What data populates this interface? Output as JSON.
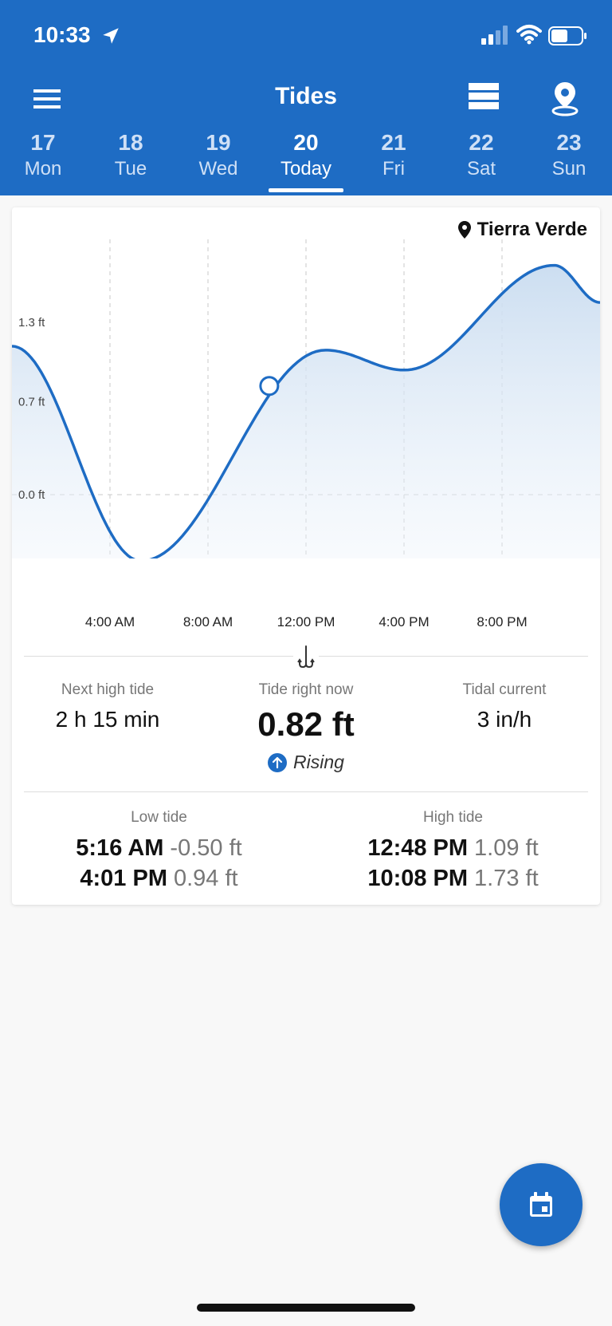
{
  "status_bar": {
    "time": "10:33"
  },
  "header": {
    "title": "Tides",
    "days": [
      {
        "num": "17",
        "name": "Mon",
        "active": false
      },
      {
        "num": "18",
        "name": "Tue",
        "active": false
      },
      {
        "num": "19",
        "name": "Wed",
        "active": false
      },
      {
        "num": "20",
        "name": "Today",
        "active": true
      },
      {
        "num": "21",
        "name": "Fri",
        "active": false
      },
      {
        "num": "22",
        "name": "Sat",
        "active": false
      },
      {
        "num": "23",
        "name": "Sun",
        "active": false
      }
    ]
  },
  "card": {
    "location": "Tierra Verde",
    "summary": {
      "next_high_label": "Next high tide",
      "next_high_value": "2 h 15 min",
      "now_label": "Tide right now",
      "now_value": "0.82 ft",
      "trend": "Rising",
      "current_label": "Tidal current",
      "current_value": "3 in/h"
    },
    "low_tide": {
      "label": "Low tide",
      "rows": [
        {
          "time": "5:16 AM",
          "height": "-0.50 ft"
        },
        {
          "time": "4:01 PM",
          "height": "0.94 ft"
        }
      ]
    },
    "high_tide": {
      "label": "High tide",
      "rows": [
        {
          "time": "12:48 PM",
          "height": "1.09 ft"
        },
        {
          "time": "10:08 PM",
          "height": "1.73 ft"
        }
      ]
    }
  },
  "chart_data": {
    "type": "area",
    "x_unit": "hours",
    "xlim": [
      0,
      24
    ],
    "ylim": [
      -0.75,
      2.0
    ],
    "y_ticks": [
      1.3,
      0.7,
      0.0
    ],
    "y_tick_labels": [
      "1.3 ft",
      "0.7 ft",
      "0.0 ft"
    ],
    "x_ticks": [
      4,
      8,
      12,
      16,
      20
    ],
    "x_tick_labels": [
      "4:00 AM",
      "8:00 AM",
      "12:00 PM",
      "4:00 PM",
      "8:00 PM"
    ],
    "grid": true,
    "series": [
      {
        "x": [
          0,
          5.27,
          12.8,
          16.02,
          22.13,
          24
        ],
        "y": [
          1.12,
          -0.5,
          1.09,
          0.94,
          1.73,
          1.45
        ]
      }
    ],
    "current_point": {
      "x": 10.5,
      "y": 0.82
    },
    "colors": {
      "line": "#1e6cc4",
      "fill": "#c9dcf0"
    }
  },
  "colors": {
    "primary": "#1e6cc4",
    "header_text": "#ffffff",
    "muted": "#777777"
  },
  "icons": {
    "menu": "menu-icon",
    "list": "list-icon",
    "pin": "map-pin-icon",
    "calendar": "calendar-icon",
    "hook": "fish-hook-icon",
    "arrow_up": "arrow-up-icon"
  }
}
